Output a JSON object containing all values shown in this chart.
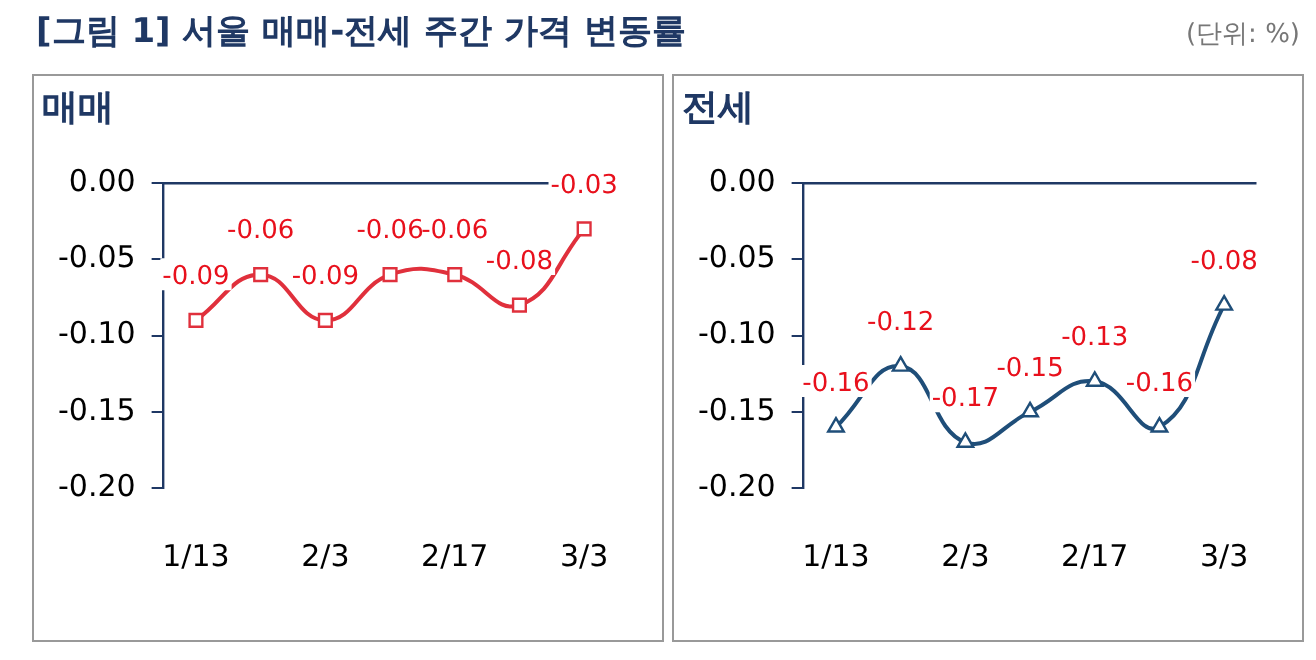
{
  "chart_data": [
    {
      "type": "line",
      "title": "매매",
      "annotations": [
        "[그림 1] 서울 매매-전세 주간 가격 변동률",
        "(단위: %)"
      ],
      "categories": [
        "1/13",
        null,
        "2/3",
        null,
        "2/17",
        null,
        "3/3"
      ],
      "series": [
        {
          "color": "#e0303c",
          "values": [
            -0.09,
            -0.06,
            -0.09,
            -0.06,
            -0.06,
            -0.08,
            -0.03
          ]
        }
      ],
      "ylim": [
        -0.2,
        0
      ],
      "yticks": [
        {
          "value": -0.2,
          "label": "-0.20"
        },
        {
          "value": -0.15,
          "label": "-0.15"
        },
        {
          "value": -0.1,
          "label": "-0.10"
        },
        {
          "value": -0.05,
          "label": "-0.05"
        },
        {
          "value": 0,
          "label": "0.00"
        }
      ],
      "marker": "square",
      "data_labels": true,
      "grid": false,
      "legend": false
    },
    {
      "type": "line",
      "title": "전세",
      "categories": [
        "1/13",
        null,
        "2/3",
        null,
        "2/17",
        null,
        "3/3"
      ],
      "series": [
        {
          "color": "#1f4e79",
          "values": [
            -0.16,
            -0.12,
            -0.17,
            -0.15,
            -0.13,
            -0.16,
            -0.08
          ]
        }
      ],
      "ylim": [
        -0.2,
        0
      ],
      "yticks": [
        {
          "value": -0.2,
          "label": "-0.20"
        },
        {
          "value": -0.15,
          "label": "-0.15"
        },
        {
          "value": -0.1,
          "label": "-0.10"
        },
        {
          "value": -0.05,
          "label": "-0.05"
        },
        {
          "value": 0,
          "label": "0.00"
        }
      ],
      "marker": "triangle",
      "data_labels": true,
      "grid": false,
      "legend": false
    }
  ]
}
